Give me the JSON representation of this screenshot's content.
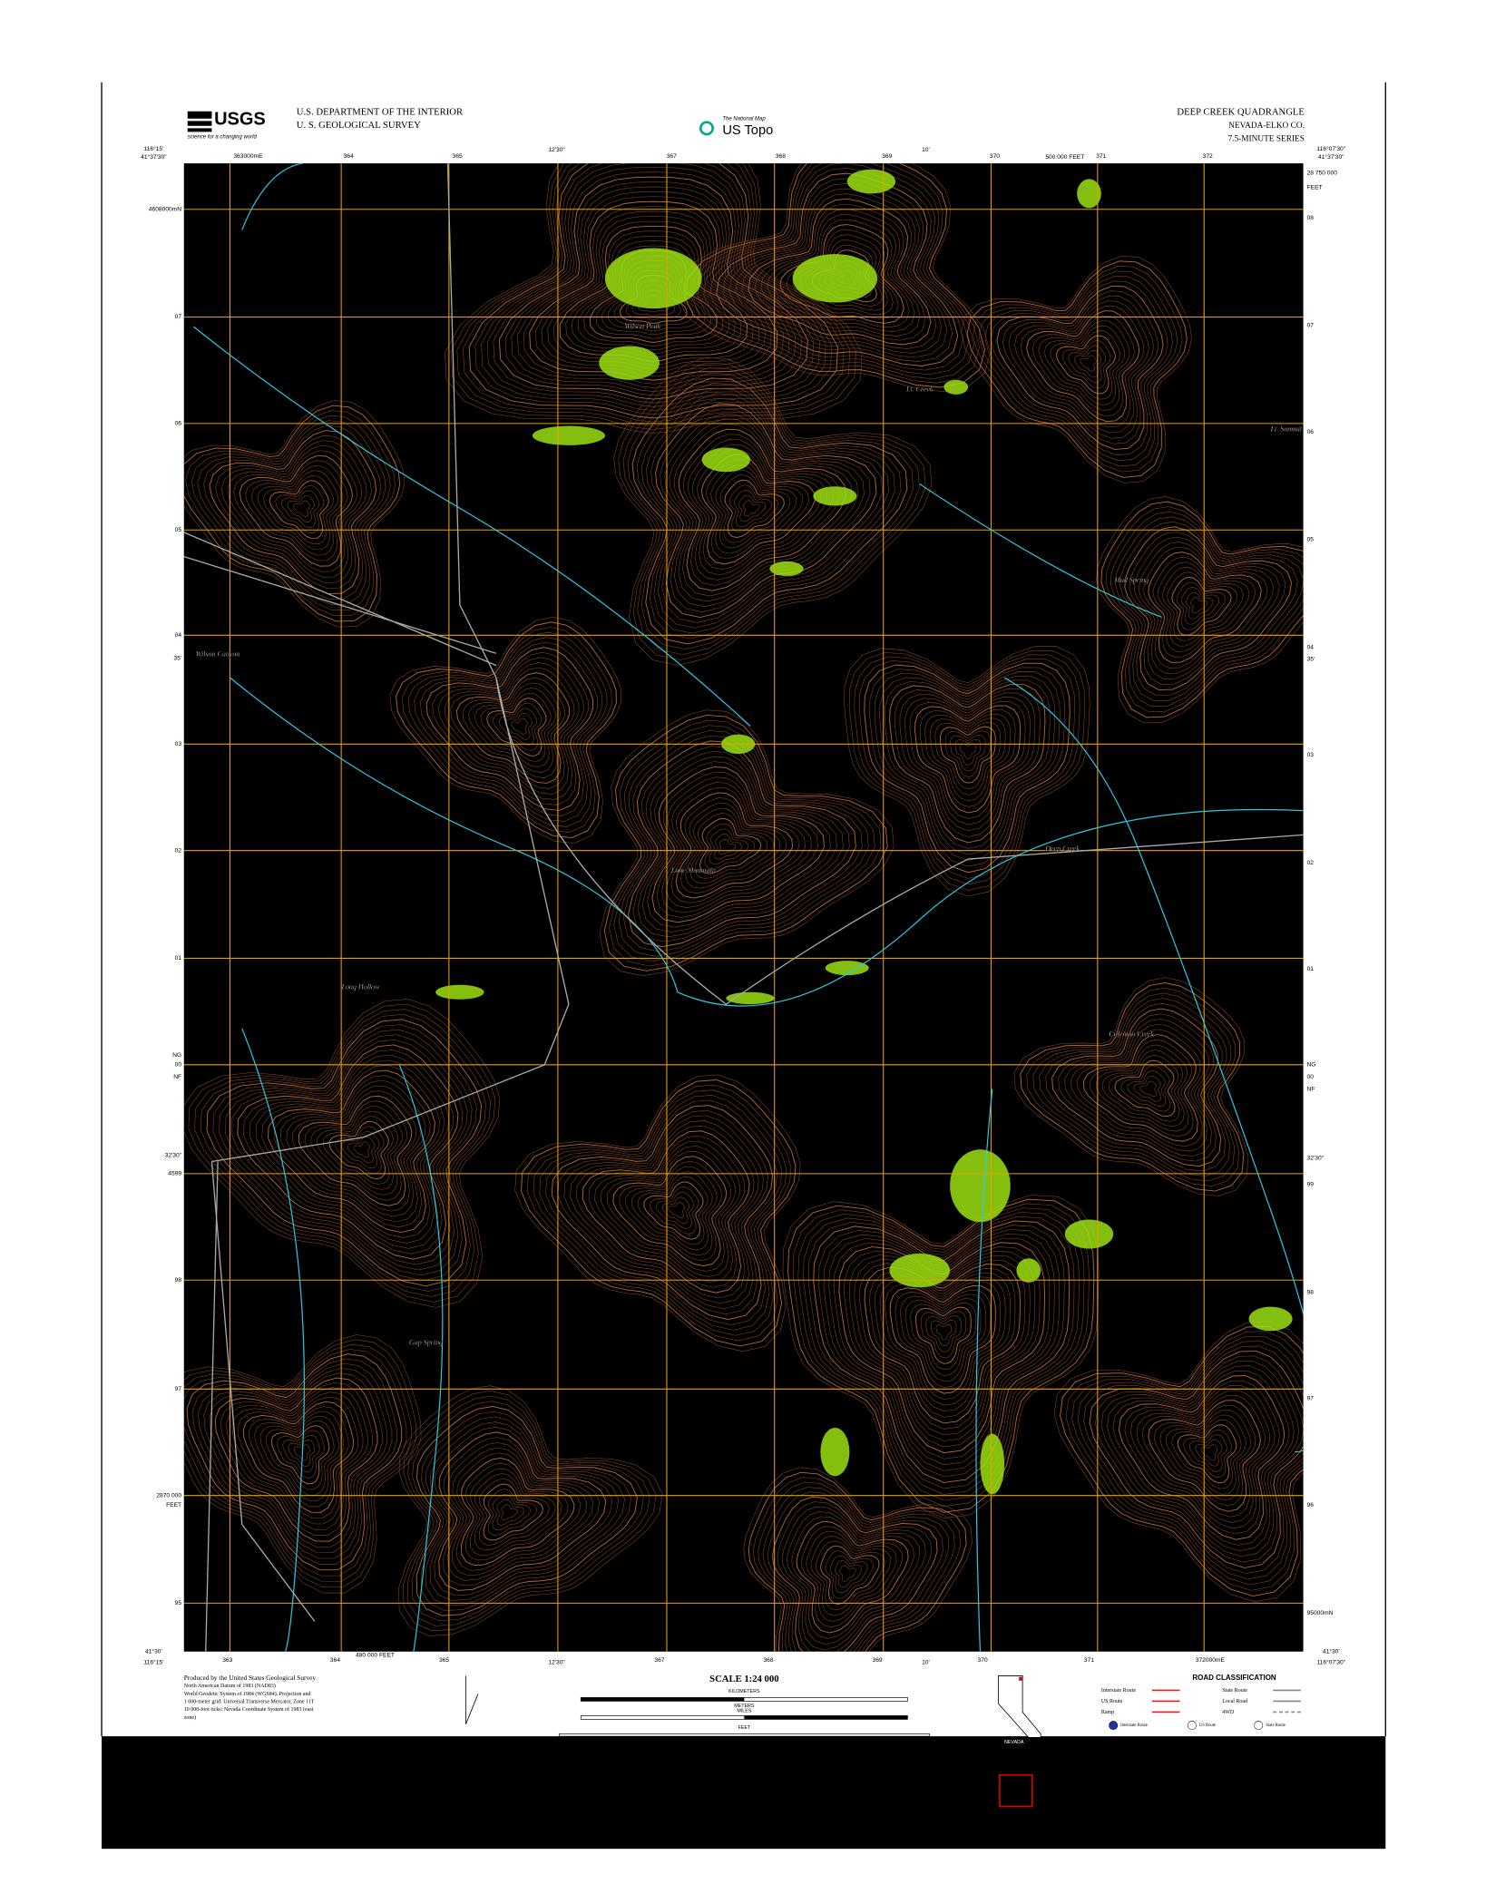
{
  "header": {
    "logo": "USGS",
    "logo_tagline": "science for a changing world",
    "agency": [
      "U.S. DEPARTMENT OF THE INTERIOR",
      "U. S. GEOLOGICAL SURVEY"
    ],
    "product_small": "The National Map",
    "product": "US Topo",
    "title": "DEEP CREEK QUADRANGLE",
    "state_county": "NEVADA-ELKO CO.",
    "series": "7.5-MINUTE SERIES"
  },
  "collar": {
    "top": [
      "116°15'",
      "41°37'30\"",
      "363000mE",
      "364",
      "365",
      "12'30\"",
      "367",
      "368",
      "369",
      "10'",
      "370",
      "500 000 FEET",
      "371",
      "372",
      "116°07'30\"",
      "41°37'30\""
    ],
    "left": [
      "4608000mN",
      "07",
      "06",
      "05",
      "04",
      "35'",
      "03",
      "02",
      "01",
      "NG",
      "00",
      "NF",
      "32'30\"",
      "4599",
      "98",
      "97",
      "2870 000",
      "FEET",
      "95"
    ],
    "right": [
      "28 750 000",
      "FEET",
      "08",
      "07",
      "06",
      "05",
      "04",
      "35'",
      "03",
      "02",
      "01",
      "NG",
      "00",
      "NF",
      "32'30\"",
      "99",
      "98",
      "97",
      "96",
      "95000mN"
    ],
    "bottom": [
      "41°30'",
      "116°15'",
      "363",
      "364",
      "480 000 FEET",
      "365",
      "12'30\"",
      "367",
      "368",
      "369",
      "10'",
      "370",
      "371",
      "372000mE",
      "116°07'30\"",
      "41°30'"
    ]
  },
  "features": [
    "Wilson Peak",
    "Lime Mountain",
    "Deep Creek",
    "Wilson Canyon",
    "Long Hollow",
    "Coleman Creek",
    "Mud Spring",
    "Gap Spring",
    "Lt. Creek",
    "Lt. Summit"
  ],
  "footer": {
    "credits": [
      "Produced by the United States Geological Survey",
      "North American Datum of 1983 (NAD83)",
      "World Geodetic System of 1984 (WGS84). Projection and",
      "1 000-meter grid: Universal Transverse Mercator, Zone 11T",
      "10 000-foot ticks: Nevada Coordinate System of 1983 (east",
      "zone)"
    ],
    "scale": "SCALE 1:24 000",
    "scale_units": [
      "KILOMETERS",
      "METERS",
      "MILES",
      "FEET"
    ],
    "inset": "NEVADA",
    "roads_title": "ROAD CLASSIFICATION",
    "roads": [
      "Interstate Route",
      "US Route",
      "Ramp",
      "State Route",
      "Local Road",
      "4WD"
    ],
    "shields": [
      "Interstate Route",
      "US Route",
      "State Route"
    ]
  }
}
